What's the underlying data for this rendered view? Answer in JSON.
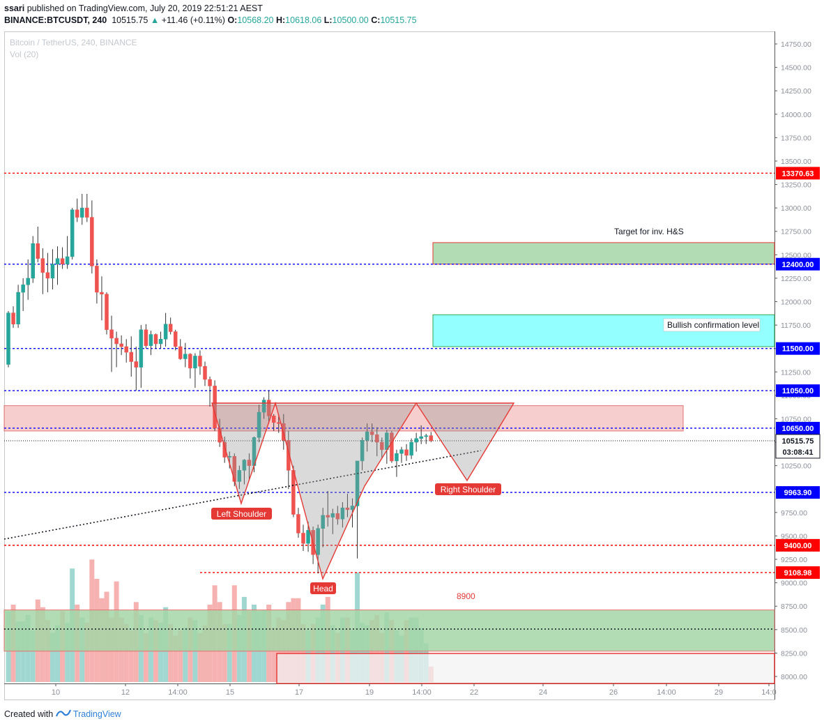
{
  "header": {
    "author": "ssari",
    "published": "published on TradingView.com, July 20, 2019 22:51:21 AEST",
    "symbol": "BINANCE:BTCUSDT, 240",
    "last": "10515.75",
    "change": "+11.46 (+0.11%)",
    "o_label": "O:",
    "o": "10568.20",
    "h_label": "H:",
    "h": "10618.06",
    "l_label": "L:",
    "l": "10500.00",
    "c_label": "C:",
    "c": "10515.75"
  },
  "watermark": {
    "title": "Bitcoin / TetherUS, 240, BINANCE",
    "vol": "Vol (20)"
  },
  "footer": {
    "created": "Created with",
    "brand": "TradingView"
  },
  "colors": {
    "up": "#26a69a",
    "down": "#ef5350",
    "red_line": "#ff0000",
    "blue_line": "#0000ff"
  },
  "chart_data": {
    "type": "candlestick",
    "title": "Bitcoin / TetherUS, 240, BINANCE",
    "price_axis": {
      "min": 8000,
      "max": 14750,
      "step": 250,
      "ticks": [
        "14750.00",
        "14500.00",
        "14250.00",
        "14000.00",
        "13750.00",
        "13500.00",
        "13250.00",
        "13000.00",
        "12750.00",
        "12500.00",
        "12250.00",
        "12000.00",
        "11750.00",
        "11500.00",
        "11250.00",
        "11000.00",
        "10750.00",
        "10500.00",
        "10250.00",
        "10000.00",
        "9750.00",
        "9500.00",
        "9250.00",
        "9000.00",
        "8750.00",
        "8500.00",
        "8250.00",
        "8000.00"
      ]
    },
    "time_axis": {
      "ticks": [
        "10",
        "12",
        "14:00",
        "15",
        "17",
        "19",
        "14:00",
        "22",
        "24",
        "26",
        "14:00",
        "29",
        "14:0"
      ]
    },
    "price_lines": [
      {
        "value": 13370.63,
        "label": "13370.63",
        "color": "#ff0000"
      },
      {
        "value": 12400.0,
        "label": "12400.00",
        "color": "#0000ff"
      },
      {
        "value": 11500.0,
        "label": "11500.00",
        "color": "#0000ff"
      },
      {
        "value": 11050.0,
        "label": "11050.00",
        "color": "#0000ff"
      },
      {
        "value": 10650.0,
        "label": "10650.00",
        "color": "#0000ff"
      },
      {
        "value": 9963.9,
        "label": "9963.90",
        "color": "#0000ff"
      },
      {
        "value": 9400.0,
        "label": "9400.00",
        "color": "#ff0000"
      },
      {
        "value": 9108.98,
        "label": "9108.98",
        "color": "#ff0000"
      }
    ],
    "current_price": {
      "value": 10515.75,
      "label": "10515.75",
      "countdown": "03:08:41"
    },
    "zones": [
      {
        "name": "Target for inv. H&S",
        "from": 12400,
        "to": 12630,
        "color": "#a5d6a7"
      },
      {
        "name": "Bullish confirmation level",
        "from": 11520,
        "to": 11860,
        "color": "#80ffff"
      },
      {
        "name": "",
        "from": 10620,
        "to": 10890,
        "color": "#f4b9b9"
      },
      {
        "name": "",
        "from": 8270,
        "to": 8710,
        "color": "#a5d6a7"
      }
    ],
    "pattern_labels": [
      "Left Shoulder",
      "Head",
      "Right Shoulder"
    ],
    "annotation": "8900",
    "candles": [
      [
        11330,
        11900,
        11300,
        11880
      ],
      [
        11880,
        11950,
        11720,
        11760
      ],
      [
        11760,
        12180,
        11720,
        12100
      ],
      [
        12100,
        12250,
        11900,
        12180
      ],
      [
        12180,
        12450,
        12020,
        12250
      ],
      [
        12250,
        12700,
        12200,
        12620
      ],
      [
        12620,
        12800,
        12420,
        12460
      ],
      [
        12460,
        12570,
        12080,
        12310
      ],
      [
        12310,
        12520,
        12100,
        12250
      ],
      [
        12250,
        12560,
        12130,
        12400
      ],
      [
        12400,
        12590,
        12180,
        12460
      ],
      [
        12460,
        12580,
        12350,
        12400
      ],
      [
        12400,
        12700,
        12350,
        12480
      ],
      [
        12480,
        13000,
        12450,
        12980
      ],
      [
        12980,
        13100,
        12850,
        12900
      ],
      [
        12900,
        13150,
        12820,
        13000
      ],
      [
        13000,
        13150,
        12850,
        12900
      ],
      [
        12900,
        13080,
        12300,
        12380
      ],
      [
        12380,
        12450,
        11980,
        12100
      ],
      [
        12100,
        12270,
        11800,
        12080
      ],
      [
        12080,
        12100,
        11650,
        11700
      ],
      [
        11700,
        11850,
        11250,
        11610
      ],
      [
        11610,
        11680,
        11300,
        11550
      ],
      [
        11550,
        11640,
        11430,
        11520
      ],
      [
        11520,
        11600,
        11350,
        11460
      ],
      [
        11460,
        11630,
        11200,
        11360
      ],
      [
        11360,
        11520,
        11050,
        11300
      ],
      [
        11300,
        11750,
        11080,
        11700
      ],
      [
        11700,
        11760,
        11500,
        11530
      ],
      [
        11530,
        11690,
        11430,
        11650
      ],
      [
        11650,
        11660,
        11500,
        11550
      ],
      [
        11550,
        11680,
        11500,
        11600
      ],
      [
        11600,
        11880,
        11520,
        11760
      ],
      [
        11760,
        11830,
        11650,
        11680
      ],
      [
        11680,
        11700,
        11480,
        11520
      ],
      [
        11520,
        11600,
        11380,
        11390
      ],
      [
        11390,
        11560,
        11300,
        11440
      ],
      [
        11440,
        11450,
        11180,
        11290
      ],
      [
        11290,
        11450,
        11080,
        11420
      ],
      [
        11420,
        11480,
        11220,
        11310
      ],
      [
        11310,
        11360,
        11100,
        11170
      ],
      [
        11170,
        11200,
        10880,
        11100
      ],
      [
        11100,
        11160,
        10620,
        10650
      ],
      [
        10650,
        10750,
        10450,
        10500
      ],
      [
        10500,
        10560,
        10280,
        10340
      ],
      [
        10340,
        10400,
        10220,
        10350
      ],
      [
        10350,
        10380,
        10030,
        10080
      ],
      [
        10080,
        10250,
        10000,
        10200
      ],
      [
        10200,
        10320,
        10050,
        10310
      ],
      [
        10310,
        10380,
        10100,
        10250
      ],
      [
        10250,
        10560,
        10180,
        10550
      ],
      [
        10550,
        10900,
        10500,
        10820
      ],
      [
        10820,
        10980,
        10750,
        10950
      ],
      [
        10950,
        11050,
        10700,
        10780
      ],
      [
        10780,
        10800,
        10620,
        10710
      ],
      [
        10710,
        10800,
        10600,
        10700
      ],
      [
        10700,
        10800,
        10420,
        10520
      ],
      [
        10520,
        10620,
        10000,
        10200
      ],
      [
        10200,
        10250,
        9700,
        9730
      ],
      [
        9730,
        9800,
        9480,
        9530
      ],
      [
        9530,
        9620,
        9340,
        9420
      ],
      [
        9420,
        9650,
        9330,
        9560
      ],
      [
        9560,
        9600,
        9200,
        9300
      ],
      [
        9300,
        9620,
        9100,
        9580
      ],
      [
        9580,
        9800,
        9380,
        9720
      ],
      [
        9720,
        9980,
        9600,
        9700
      ],
      [
        9700,
        9790,
        9520,
        9740
      ],
      [
        9740,
        9820,
        9620,
        9680
      ],
      [
        9680,
        9860,
        9590,
        9800
      ],
      [
        9800,
        9950,
        9700,
        9780
      ],
      [
        9780,
        9900,
        9590,
        9820
      ],
      [
        9820,
        10300,
        9260,
        10300
      ],
      [
        10300,
        10550,
        10200,
        10520
      ],
      [
        10520,
        10700,
        10400,
        10610
      ],
      [
        10610,
        10700,
        10500,
        10580
      ],
      [
        10580,
        10660,
        10350,
        10500
      ],
      [
        10500,
        10550,
        10320,
        10420
      ],
      [
        10420,
        10630,
        10270,
        10600
      ],
      [
        10600,
        10620,
        10280,
        10300
      ],
      [
        10300,
        10420,
        10130,
        10380
      ],
      [
        10380,
        10450,
        10280,
        10420
      ],
      [
        10420,
        10480,
        10300,
        10360
      ],
      [
        10360,
        10540,
        10320,
        10500
      ],
      [
        10500,
        10600,
        10400,
        10540
      ],
      [
        10540,
        10680,
        10480,
        10560
      ],
      [
        10560,
        10590,
        10480,
        10570
      ],
      [
        10570,
        10610,
        10500,
        10515
      ]
    ],
    "volumes": [
      55,
      60,
      47,
      47,
      52,
      40,
      64,
      58,
      48,
      38,
      44,
      55,
      46,
      88,
      60,
      50,
      46,
      95,
      80,
      65,
      70,
      50,
      78,
      50,
      45,
      40,
      62,
      52,
      38,
      50,
      48,
      46,
      58,
      45,
      36,
      40,
      42,
      50,
      48,
      38,
      44,
      60,
      75,
      62,
      45,
      45,
      75,
      52,
      66,
      55,
      60,
      55,
      56,
      60,
      42,
      50,
      48,
      62,
      65,
      65,
      45,
      40,
      45,
      50,
      60,
      66,
      44,
      38,
      50,
      50,
      40,
      85,
      46,
      44,
      48,
      52,
      38,
      54,
      48,
      40,
      36,
      48,
      50,
      50,
      42,
      30,
      12
    ]
  }
}
